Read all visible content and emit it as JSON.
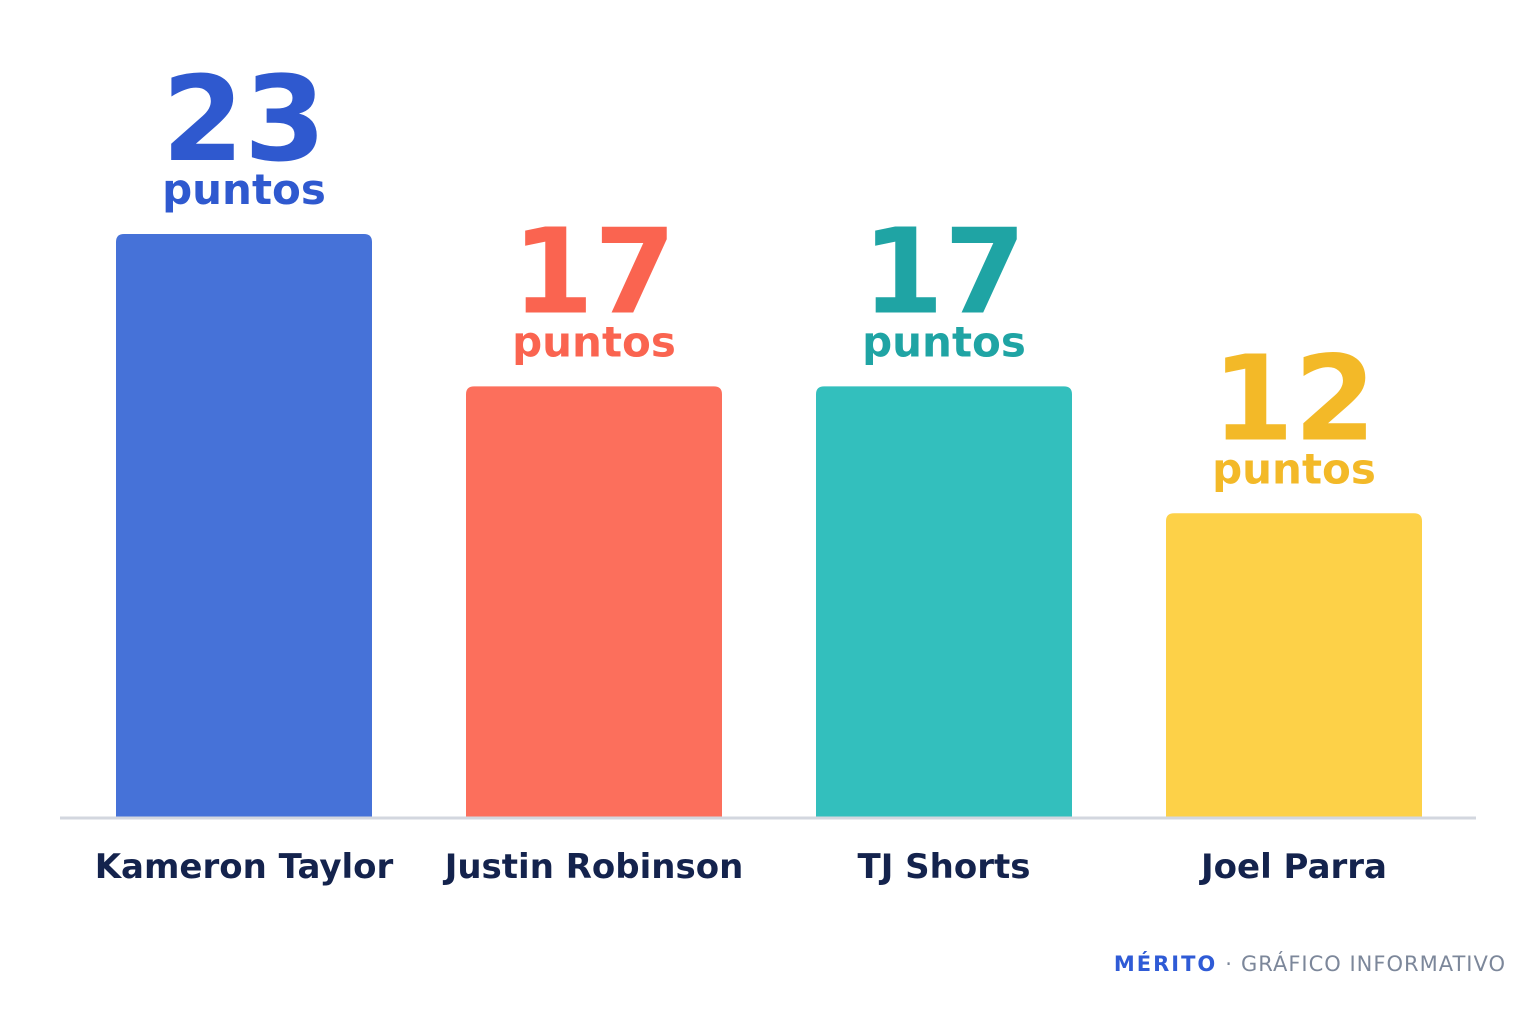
{
  "chart_data": {
    "type": "bar",
    "categories": [
      "Kameron Taylor",
      "Justin Robinson",
      "TJ Shorts",
      "Joel Parra"
    ],
    "values": [
      23,
      17,
      17,
      12
    ],
    "unit_label": "puntos",
    "colors": {
      "bars": [
        "#4672d8",
        "#fc6f5c",
        "#33bfbd",
        "#fdd148"
      ],
      "labels": [
        "#2f59cf",
        "#fa6450",
        "#1fa4a4",
        "#f3b928"
      ],
      "category_text": "#14234d",
      "baseline": "#d3d7df"
    },
    "ylim": [
      0,
      23
    ],
    "grid": false,
    "legend": "none"
  },
  "footer": {
    "brand": "MÉRITO",
    "separator": "·",
    "subtitle": "GRÁFICO INFORMATIVO"
  }
}
